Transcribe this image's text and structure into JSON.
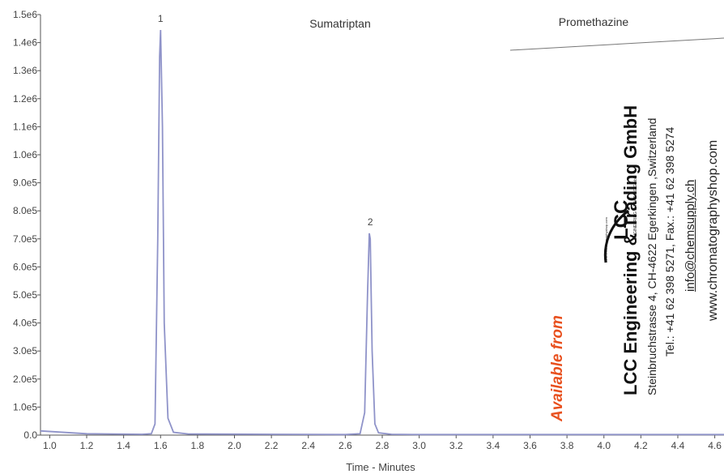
{
  "chart_data": {
    "type": "line",
    "title": "",
    "xlabel": "Time - Minutes",
    "ylabel": "",
    "xlim": [
      0.95,
      4.65
    ],
    "ylim": [
      0,
      1500000
    ],
    "x_ticks": [
      "1.0",
      "1.2",
      "1.4",
      "1.6",
      "1.8",
      "2.0",
      "2.2",
      "2.4",
      "2.6",
      "2.8",
      "3.0",
      "3.2",
      "3.4",
      "3.6",
      "3.8",
      "4.0",
      "4.2",
      "4.4",
      "4.6"
    ],
    "x_tick_values": [
      1.0,
      1.2,
      1.4,
      1.6,
      1.8,
      2.0,
      2.2,
      2.4,
      2.6,
      2.8,
      3.0,
      3.2,
      3.4,
      3.6,
      3.8,
      4.0,
      4.2,
      4.4,
      4.6
    ],
    "y_ticks": [
      "0.0",
      "1.0e5",
      "2.0e5",
      "3.0e5",
      "4.0e5",
      "5.0e5",
      "6.0e5",
      "7.0e5",
      "8.0e5",
      "9.0e5",
      "1.0e6",
      "1.1e6",
      "1.2e6",
      "1.3e6",
      "1.4e6",
      "1.5e6"
    ],
    "y_tick_values": [
      0,
      100000,
      200000,
      300000,
      400000,
      500000,
      600000,
      700000,
      800000,
      900000,
      1000000,
      1100000,
      1200000,
      1300000,
      1400000,
      1500000
    ],
    "grid": false,
    "line_color": "#8f93c9",
    "series": [
      {
        "x": [
          0.95,
          1.2,
          1.5,
          1.55,
          1.57,
          1.585,
          1.595,
          1.6,
          1.61,
          1.62,
          1.64,
          1.67,
          1.75,
          2.2,
          2.6,
          2.68,
          2.705,
          2.72,
          2.73,
          2.735,
          2.745,
          2.76,
          2.78,
          2.85,
          3.0,
          3.4,
          3.8,
          4.2,
          4.65
        ],
        "y": [
          15000,
          5000,
          3000,
          5000,
          40000,
          700000,
          1350000,
          1445000,
          1100000,
          400000,
          60000,
          10000,
          4000,
          3000,
          2000,
          5000,
          80000,
          500000,
          720000,
          700000,
          300000,
          40000,
          8000,
          3000,
          2000,
          2000,
          2000,
          2000,
          2000
        ]
      }
    ],
    "peaks": [
      {
        "label": "1",
        "x": 1.6,
        "y": 1445000
      },
      {
        "label": "2",
        "x": 2.735,
        "y": 720000
      }
    ],
    "annotations": [
      "Sumatriptan",
      "Promethazine"
    ]
  },
  "stamp": {
    "company": "LCC Engineering & Trading GmbH",
    "address": "Steinbruchstrasse 4, CH-4622 Egerkingen ,Switzerland",
    "phone": "Tel.: +41 62 398 5271,  Fax.: +41 62 398 5274",
    "email": "info@chemsupply.ch",
    "web": "www.chromatographyshop.com",
    "available": "Available from",
    "logo_text": "LCC",
    "logo_sub": "ENGINEERING & TRADING GmbH",
    "logo_url": "www.chromatographyshop.com",
    "accent_color": "#e8501e"
  }
}
